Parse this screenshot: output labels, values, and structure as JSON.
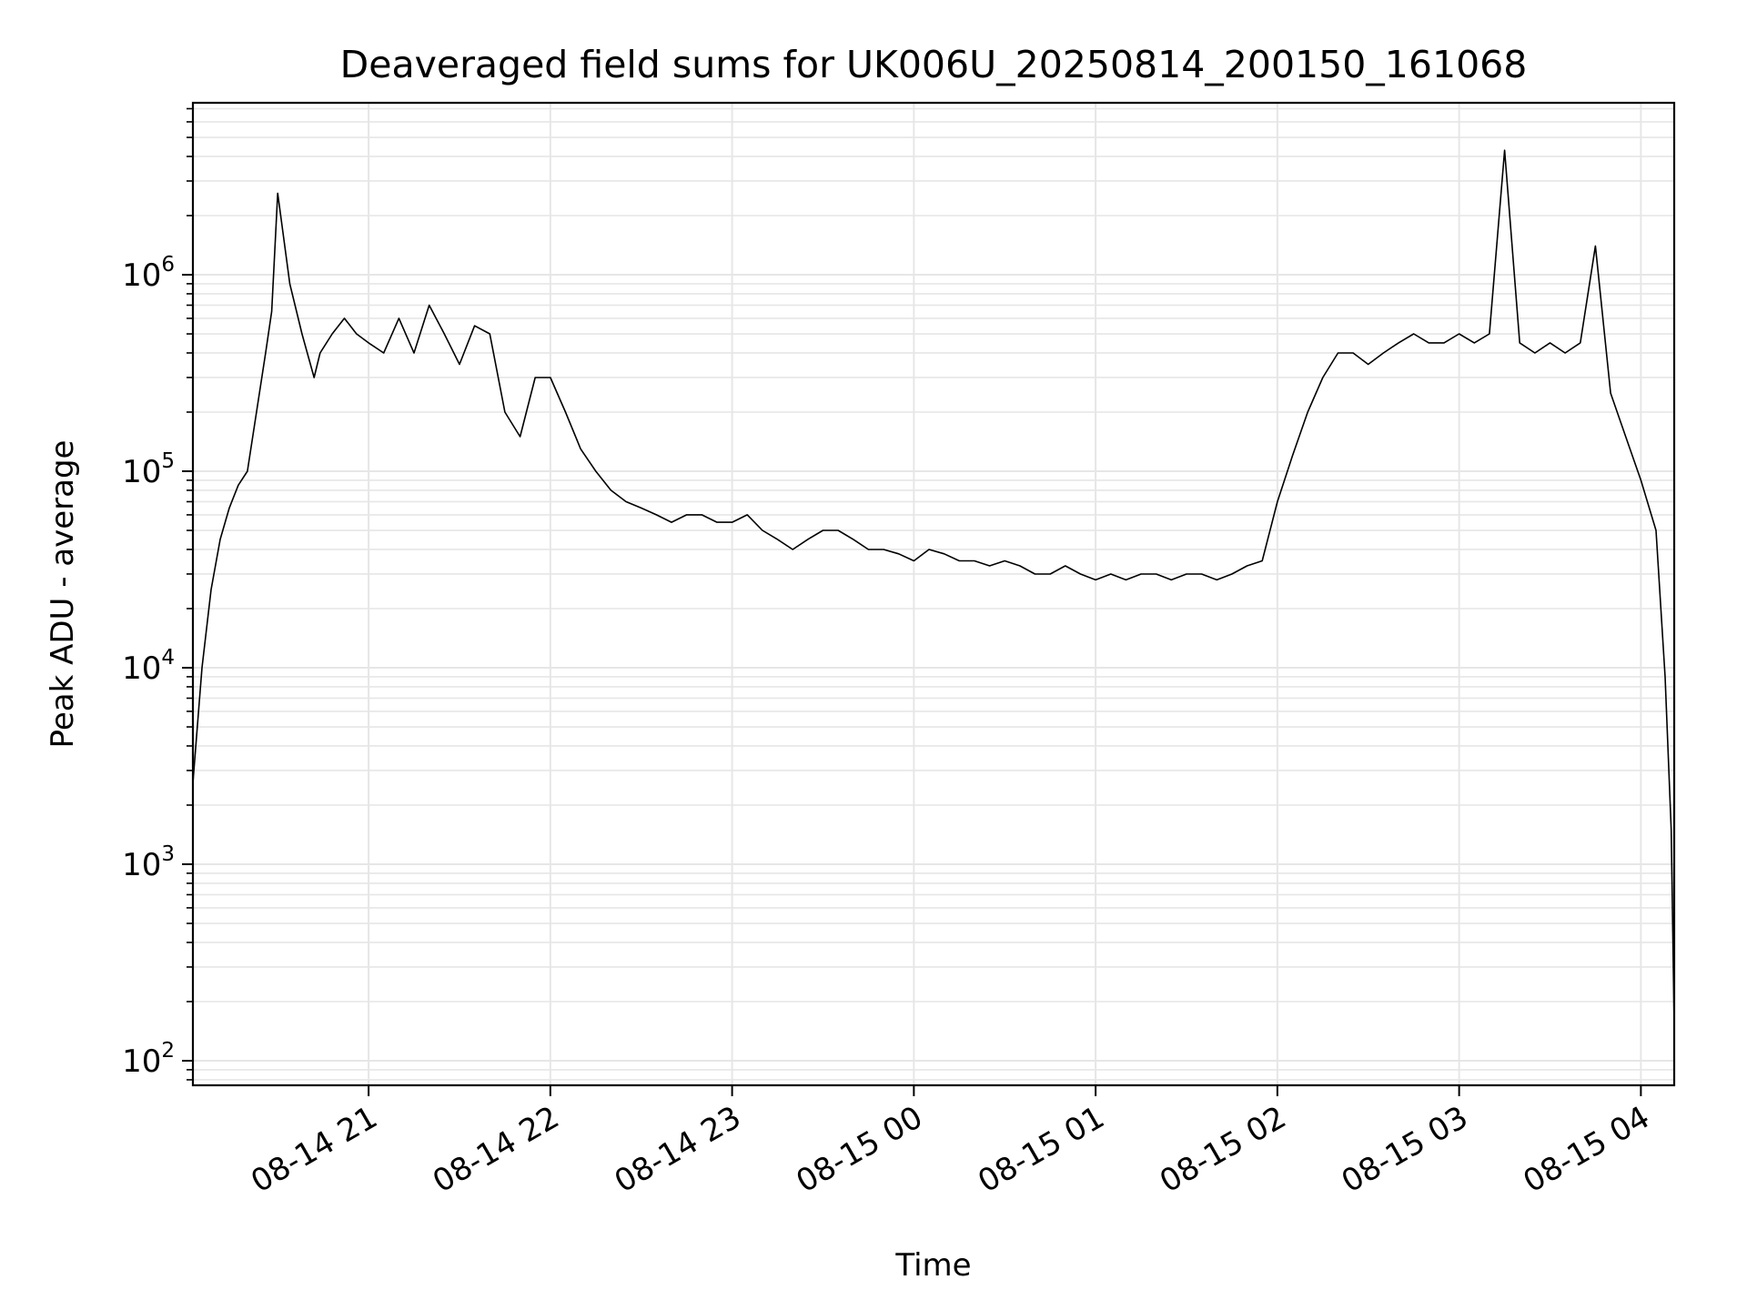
{
  "chart_data": {
    "type": "line",
    "title": "Deaveraged field sums for UK006U_20250814_200150_161068",
    "xlabel": "Time",
    "ylabel": "Peak ADU - average",
    "yscale": "log",
    "ylim": [
      75,
      7500000
    ],
    "xlim": [
      "2025-08-14T20:02",
      "2025-08-15T04:11"
    ],
    "x_ticks": [
      {
        "t": "2025-08-14T21:00",
        "label": "08-14 21"
      },
      {
        "t": "2025-08-14T22:00",
        "label": "08-14 22"
      },
      {
        "t": "2025-08-14T23:00",
        "label": "08-14 23"
      },
      {
        "t": "2025-08-15T00:00",
        "label": "08-15 00"
      },
      {
        "t": "2025-08-15T01:00",
        "label": "08-15 01"
      },
      {
        "t": "2025-08-15T02:00",
        "label": "08-15 02"
      },
      {
        "t": "2025-08-15T03:00",
        "label": "08-15 03"
      },
      {
        "t": "2025-08-15T04:00",
        "label": "08-15 04"
      }
    ],
    "y_ticks": [
      {
        "value": 100,
        "base": "10",
        "exp": "2"
      },
      {
        "value": 1000,
        "base": "10",
        "exp": "3"
      },
      {
        "value": 10000,
        "base": "10",
        "exp": "4"
      },
      {
        "value": 100000,
        "base": "10",
        "exp": "5"
      },
      {
        "value": 1000000,
        "base": "10",
        "exp": "6"
      }
    ],
    "grid": true,
    "line_color": "#000000",
    "grid_color": "#e6e6e6",
    "series": [
      {
        "x": [
          "2025-08-14T20:02",
          "2025-08-14T20:05",
          "2025-08-14T20:08",
          "2025-08-14T20:11",
          "2025-08-14T20:14",
          "2025-08-14T20:17",
          "2025-08-14T20:20",
          "2025-08-14T20:23",
          "2025-08-14T20:26",
          "2025-08-14T20:28",
          "2025-08-14T20:30",
          "2025-08-14T20:34",
          "2025-08-14T20:38",
          "2025-08-14T20:42",
          "2025-08-14T20:44",
          "2025-08-14T20:48",
          "2025-08-14T20:52",
          "2025-08-14T20:56",
          "2025-08-14T21:00",
          "2025-08-14T21:05",
          "2025-08-14T21:10",
          "2025-08-14T21:15",
          "2025-08-14T21:20",
          "2025-08-14T21:25",
          "2025-08-14T21:30",
          "2025-08-14T21:35",
          "2025-08-14T21:40",
          "2025-08-14T21:45",
          "2025-08-14T21:50",
          "2025-08-14T21:55",
          "2025-08-14T22:00",
          "2025-08-14T22:05",
          "2025-08-14T22:10",
          "2025-08-14T22:15",
          "2025-08-14T22:20",
          "2025-08-14T22:25",
          "2025-08-14T22:30",
          "2025-08-14T22:35",
          "2025-08-14T22:40",
          "2025-08-14T22:45",
          "2025-08-14T22:50",
          "2025-08-14T22:55",
          "2025-08-14T23:00",
          "2025-08-14T23:05",
          "2025-08-14T23:10",
          "2025-08-14T23:15",
          "2025-08-14T23:20",
          "2025-08-14T23:25",
          "2025-08-14T23:30",
          "2025-08-14T23:35",
          "2025-08-14T23:40",
          "2025-08-14T23:45",
          "2025-08-14T23:50",
          "2025-08-14T23:55",
          "2025-08-15T00:00",
          "2025-08-15T00:05",
          "2025-08-15T00:10",
          "2025-08-15T00:15",
          "2025-08-15T00:20",
          "2025-08-15T00:25",
          "2025-08-15T00:30",
          "2025-08-15T00:35",
          "2025-08-15T00:40",
          "2025-08-15T00:45",
          "2025-08-15T00:50",
          "2025-08-15T00:55",
          "2025-08-15T01:00",
          "2025-08-15T01:05",
          "2025-08-15T01:10",
          "2025-08-15T01:15",
          "2025-08-15T01:20",
          "2025-08-15T01:25",
          "2025-08-15T01:30",
          "2025-08-15T01:35",
          "2025-08-15T01:40",
          "2025-08-15T01:45",
          "2025-08-15T01:50",
          "2025-08-15T01:55",
          "2025-08-15T02:00",
          "2025-08-15T02:05",
          "2025-08-15T02:10",
          "2025-08-15T02:15",
          "2025-08-15T02:20",
          "2025-08-15T02:25",
          "2025-08-15T02:30",
          "2025-08-15T02:35",
          "2025-08-15T02:40",
          "2025-08-15T02:45",
          "2025-08-15T02:50",
          "2025-08-15T02:55",
          "2025-08-15T03:00",
          "2025-08-15T03:05",
          "2025-08-15T03:10",
          "2025-08-15T03:15",
          "2025-08-15T03:20",
          "2025-08-15T03:25",
          "2025-08-15T03:30",
          "2025-08-15T03:35",
          "2025-08-15T03:40",
          "2025-08-15T03:45",
          "2025-08-15T03:50",
          "2025-08-15T03:55",
          "2025-08-15T04:00",
          "2025-08-15T04:05",
          "2025-08-15T04:08",
          "2025-08-15T04:10",
          "2025-08-15T04:11"
        ],
        "y": [
          2600,
          10000,
          25000,
          45000,
          65000,
          85000,
          100000,
          200000,
          400000,
          650000,
          2600000,
          900000,
          500000,
          300000,
          400000,
          500000,
          600000,
          500000,
          450000,
          400000,
          600000,
          400000,
          700000,
          500000,
          350000,
          550000,
          500000,
          200000,
          150000,
          300000,
          300000,
          200000,
          130000,
          100000,
          80000,
          70000,
          65000,
          60000,
          55000,
          60000,
          60000,
          55000,
          55000,
          60000,
          50000,
          45000,
          40000,
          45000,
          50000,
          50000,
          45000,
          40000,
          40000,
          38000,
          35000,
          40000,
          38000,
          35000,
          35000,
          33000,
          35000,
          33000,
          30000,
          30000,
          33000,
          30000,
          28000,
          30000,
          28000,
          30000,
          30000,
          28000,
          30000,
          30000,
          28000,
          30000,
          33000,
          35000,
          70000,
          120000,
          200000,
          300000,
          400000,
          400000,
          350000,
          400000,
          450000,
          500000,
          450000,
          450000,
          500000,
          450000,
          500000,
          4300000,
          450000,
          400000,
          450000,
          400000,
          450000,
          1400000,
          250000,
          150000,
          90000,
          50000,
          9000,
          1500,
          150
        ]
      }
    ]
  }
}
